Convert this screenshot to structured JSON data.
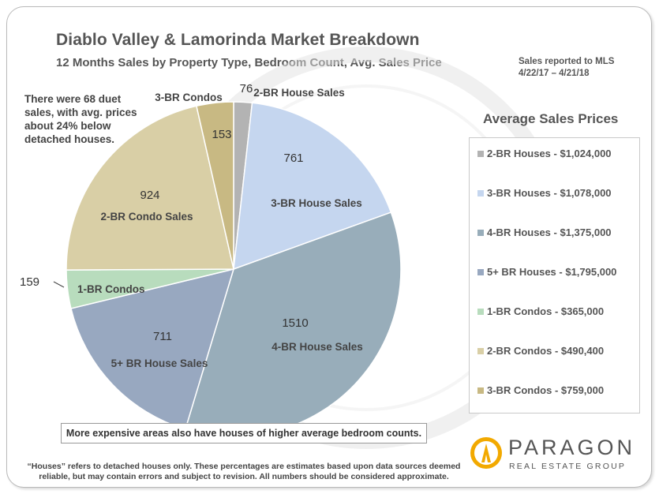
{
  "header": {
    "title": "Diablo Valley & Lamorinda Market Breakdown",
    "subtitle": "12 Months Sales by Property Type, Bedroom  Count, Avg. Sales Price",
    "mls_line1": "Sales reported to MLS",
    "mls_line2": "4/22/17 – 4/21/18"
  },
  "duet_note": "There were 68 duet sales, with avg. prices about 24% below detached houses.",
  "chart_data": {
    "type": "pie",
    "start_angle_deg": 0,
    "slices": [
      {
        "name": "2-BR House Sales",
        "value": 76,
        "color": "#b3b3b3"
      },
      {
        "name": "3-BR House Sales",
        "value": 761,
        "color": "#c5d6ef"
      },
      {
        "name": "4-BR House Sales",
        "value": 1510,
        "color": "#98adba"
      },
      {
        "name": "5+ BR House Sales",
        "value": 711,
        "color": "#98a8c0"
      },
      {
        "name": "1-BR Condos",
        "value": 159,
        "color": "#b8dcbd"
      },
      {
        "name": "2-BR Condo Sales",
        "value": 924,
        "color": "#d9cfa6"
      },
      {
        "name": "3-BR Condos",
        "value": 153,
        "color": "#c8b983"
      }
    ]
  },
  "legend": {
    "title": "Average Sales Prices",
    "items": [
      {
        "label": "2-BR Houses - $1,024,000",
        "color": "#b3b3b3"
      },
      {
        "label": "3-BR Houses - $1,078,000",
        "color": "#c5d6ef"
      },
      {
        "label": "4-BR Houses - $1,375,000",
        "color": "#98adba"
      },
      {
        "label": "5+ BR Houses - $1,795,000",
        "color": "#98a8c0"
      },
      {
        "label": "1-BR Condos - $365,000",
        "color": "#b8dcbd"
      },
      {
        "label": "2-BR Condos - $490,400",
        "color": "#d9cfa6"
      },
      {
        "label": "3-BR Condos - $759,000",
        "color": "#c8b983"
      }
    ]
  },
  "bottom_note": "More expensive areas also have houses of higher average bedroom counts.",
  "disclaimer": "“Houses” refers to detached houses only. These percentages are estimates based upon data sources deemed reliable, but may contain errors and subject to revision. All numbers should be considered approximate.",
  "logo": {
    "name": "PARAGON",
    "sub": "REAL ESTATE GROUP"
  }
}
